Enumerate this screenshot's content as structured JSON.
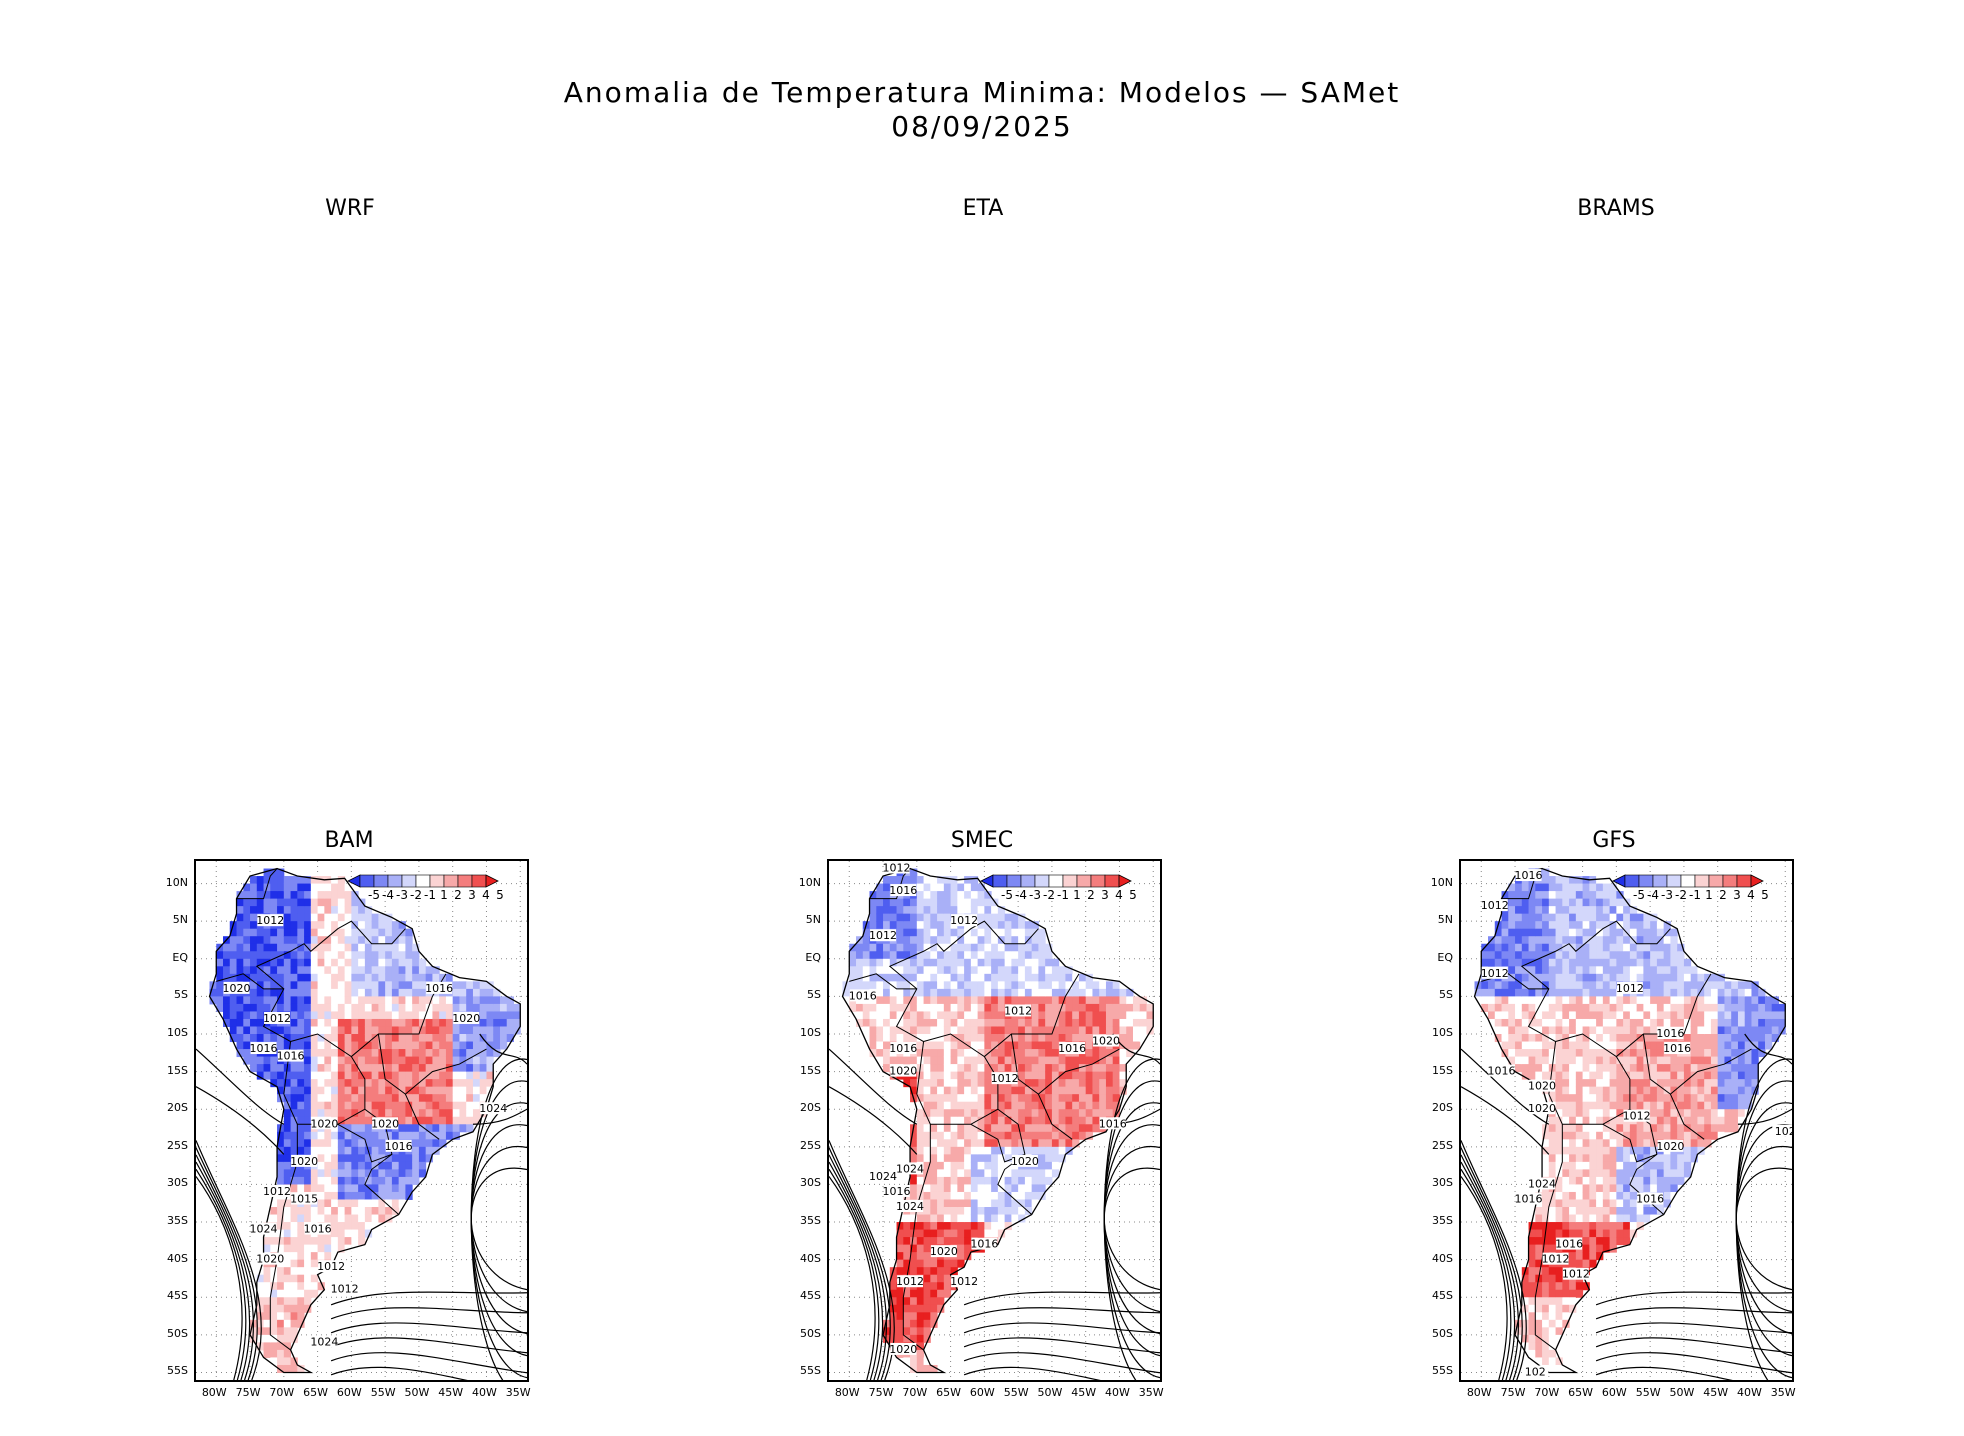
{
  "title": {
    "line1": "Anomalia de Temperatura Minima: Modelos — SAMet",
    "line2": "08/09/2025"
  },
  "empty_panels": [
    {
      "name": "WRF"
    },
    {
      "name": "ETA"
    },
    {
      "name": "BRAMS"
    }
  ],
  "map_panels": [
    {
      "name": "BAM",
      "isobars": [
        "1012",
        "1020",
        "1012",
        "1016",
        "1016",
        "1016",
        "1020",
        "1024",
        "1020",
        "1012",
        "1015",
        "1020",
        "1020",
        "1016",
        "1024",
        "1016",
        "1020",
        "1012",
        "1012",
        "1024"
      ]
    },
    {
      "name": "SMEC",
      "isobars": [
        "1012",
        "1016",
        "1012",
        "1012",
        "1016",
        "1012",
        "1016",
        "1016",
        "1020",
        "1020",
        "1012",
        "1016",
        "1020",
        "1024",
        "1016",
        "1024",
        "1016",
        "1020",
        "1012",
        "1012",
        "1024",
        "1020"
      ]
    },
    {
      "name": "GFS",
      "isobars": [
        "1016",
        "1012",
        "1012",
        "1012",
        "1016",
        "1016",
        "1016",
        "1020",
        "1012",
        "1020",
        "1020",
        "1024",
        "1016",
        "1016",
        "1016",
        "1012",
        "1012",
        "102",
        "102"
      ]
    }
  ],
  "axes": {
    "lat_ticks": [
      "10N",
      "5N",
      "EQ",
      "5S",
      "10S",
      "15S",
      "20S",
      "25S",
      "30S",
      "35S",
      "40S",
      "45S",
      "50S",
      "55S"
    ],
    "lon_ticks": [
      "80W",
      "75W",
      "70W",
      "65W",
      "60W",
      "55W",
      "50W",
      "45W",
      "40W",
      "35W"
    ]
  },
  "colorbar": {
    "labels": [
      "-5",
      "-4",
      "-3",
      "-2",
      "-1",
      "1",
      "2",
      "3",
      "4",
      "5"
    ],
    "colors": [
      "#1f2fe8",
      "#4f5ef0",
      "#7d88f4",
      "#a9b0f7",
      "#d3d7fb",
      "#ffffff",
      "#fbd3d3",
      "#f7a9a9",
      "#f47d7d",
      "#f04f4f",
      "#e81f1f"
    ]
  }
}
